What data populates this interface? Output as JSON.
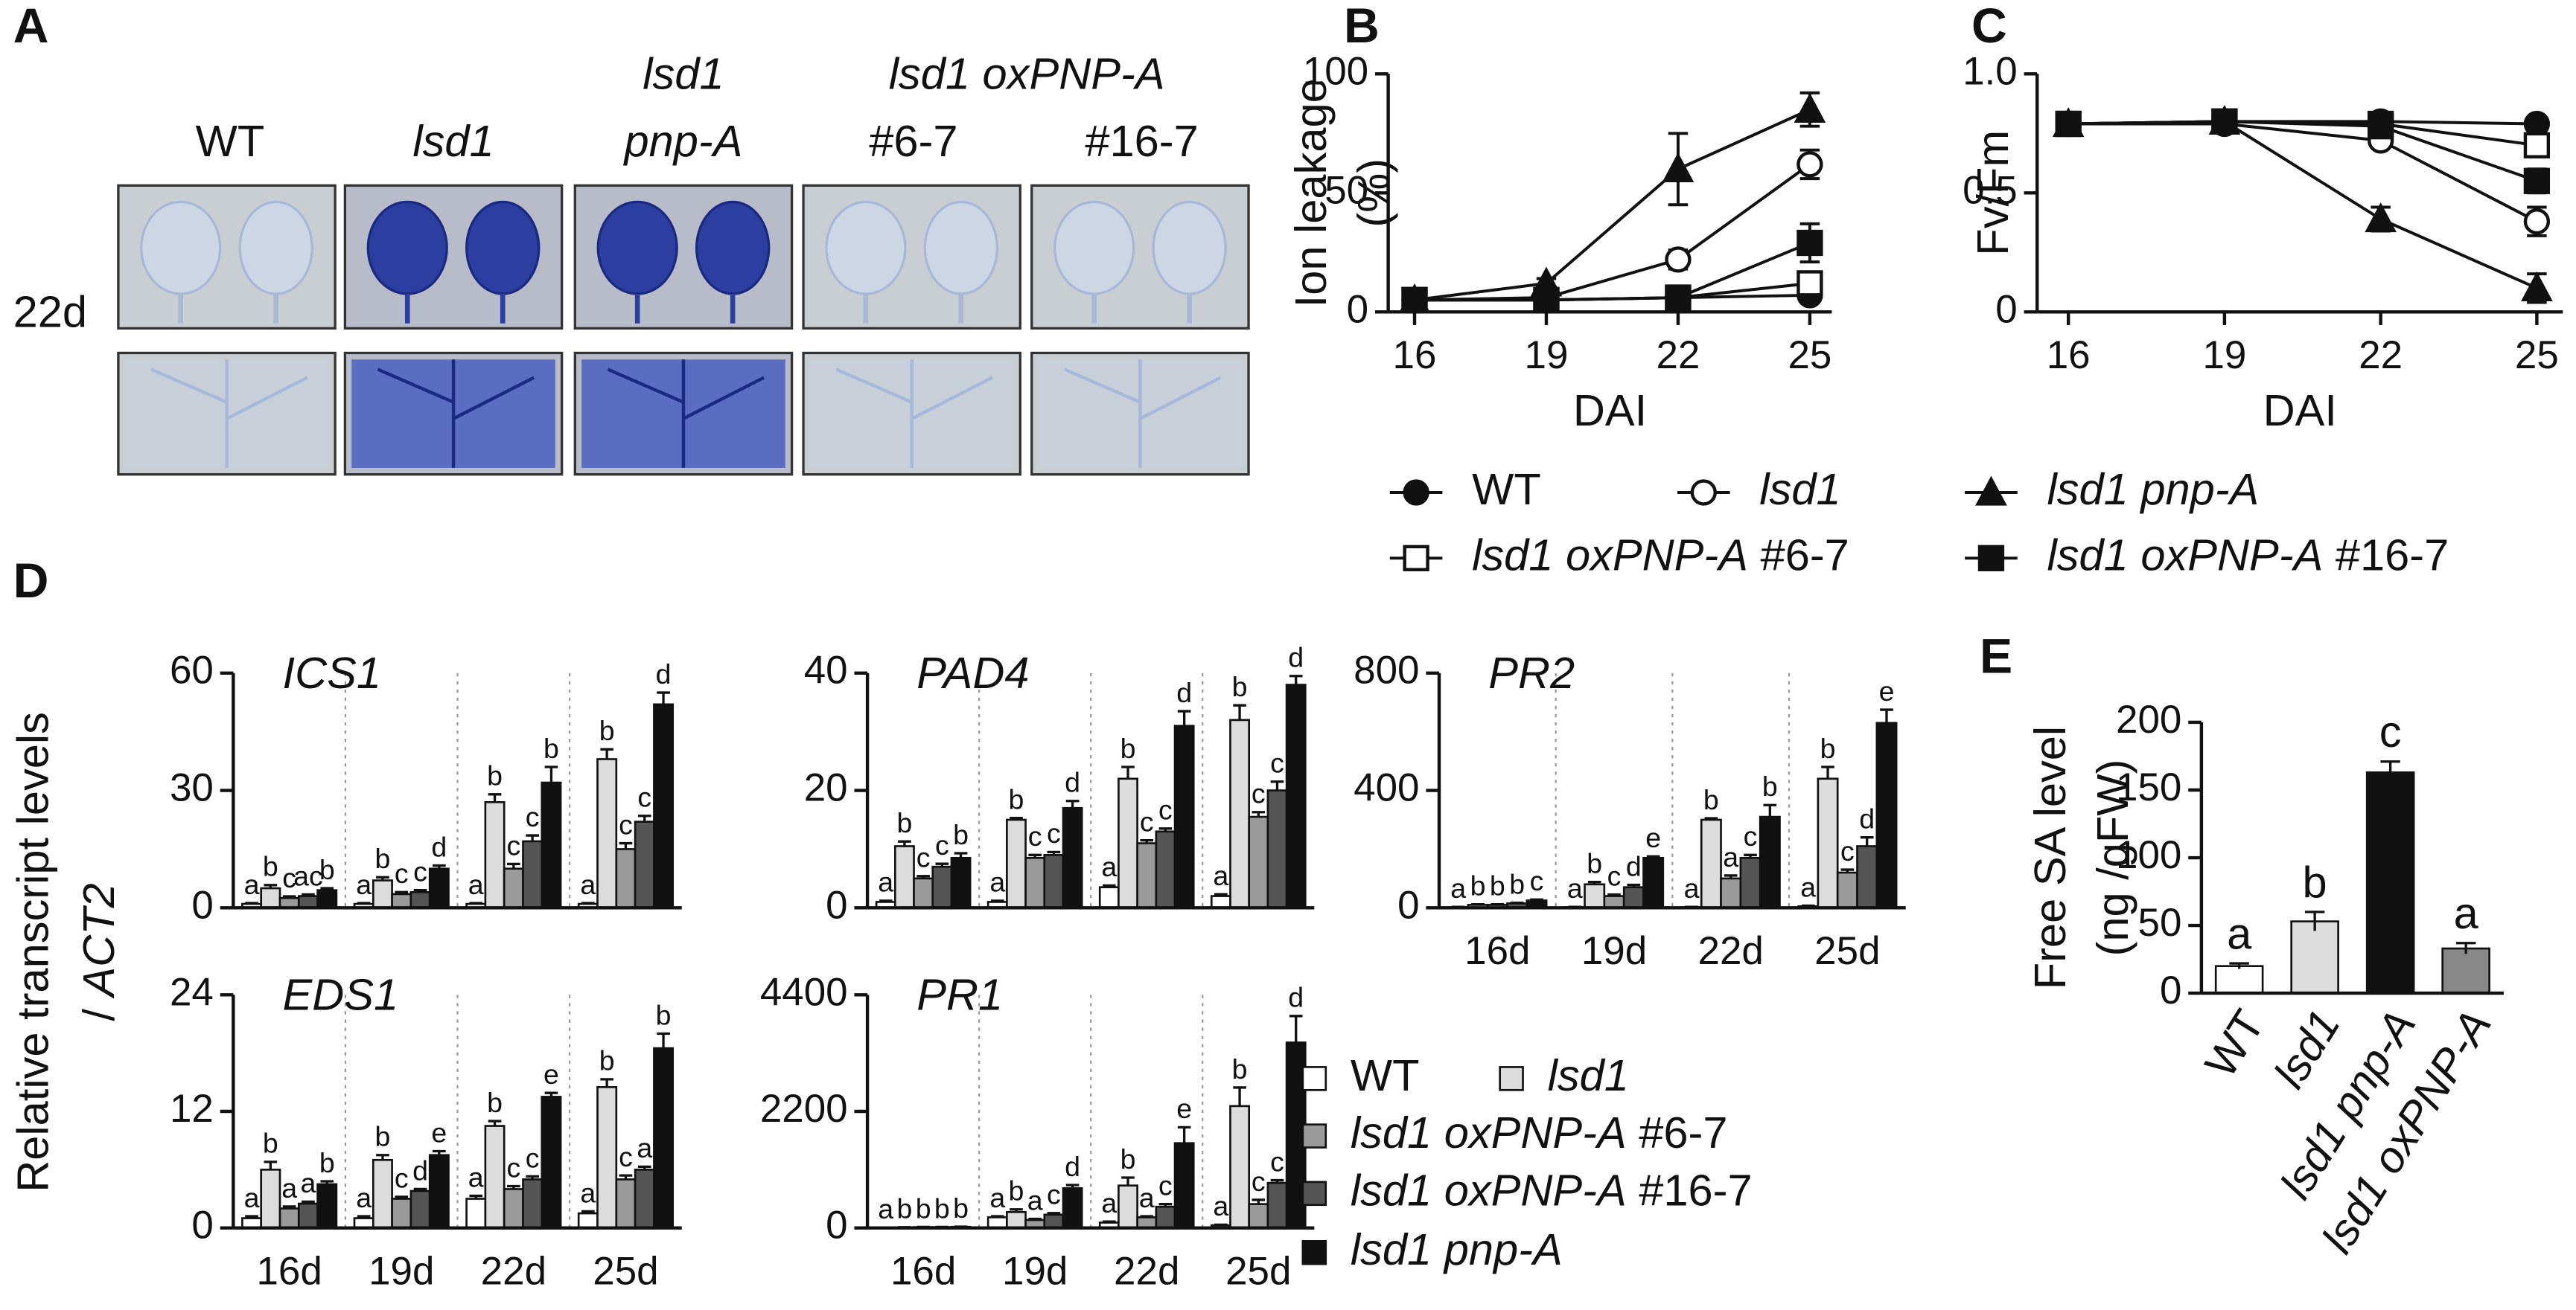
{
  "panel_labels": [
    "A",
    "B",
    "C",
    "D",
    "E"
  ],
  "panel_a": {
    "headers": [
      "WT",
      "lsd1",
      "lsd1",
      "pnp-A",
      "lsd1 oxPNP-A",
      "#6-7",
      "#16-7"
    ],
    "row_label": "22d"
  },
  "legends": [
    {
      "entries": [
        {
          "name": "WT",
          "marker": "circle",
          "filled": true
        },
        {
          "name": "lsd1",
          "marker": "circle",
          "filled": false
        },
        {
          "name": "lsd1 pnp-A",
          "marker": "triangle",
          "filled": true
        },
        {
          "name": "lsd1 oxPNP-A #6-7",
          "marker": "square",
          "filled": false
        },
        {
          "name": "lsd1 oxPNP-A #16-7",
          "marker": "square",
          "filled": true
        }
      ]
    },
    {
      "entries": [
        {
          "name": "WT",
          "color": "#ffffff"
        },
        {
          "name": "lsd1",
          "color": "#dcdcdc"
        },
        {
          "name": "lsd1 oxPNP-A #6-7",
          "color": "#9a9a9a"
        },
        {
          "name": "lsd1 oxPNP-A #16-7",
          "color": "#555555"
        },
        {
          "name": "lsd1 pnp-A",
          "color": "#111111"
        }
      ]
    }
  ],
  "d_ylabel": [
    "Relative transcript levels",
    "/ ACT2"
  ],
  "chart_data": [
    {
      "type": "line",
      "ylabel": [
        "Ion leakage",
        "(%)"
      ],
      "xlabel": "DAI",
      "x": [
        16,
        19,
        22,
        25
      ],
      "xlim": [
        15.4,
        25.5
      ],
      "xticks": [
        16,
        19,
        22,
        25
      ],
      "ylim": [
        0,
        100
      ],
      "yticks": [
        0,
        50,
        100
      ],
      "series": [
        {
          "marker": "circle",
          "filled": true,
          "values": [
            5,
            5,
            6,
            7
          ],
          "errors": [
            0.5,
            0.5,
            1,
            1
          ]
        },
        {
          "marker": "circle",
          "filled": false,
          "values": [
            5,
            6,
            22,
            62
          ],
          "errors": [
            0.5,
            1,
            4,
            6
          ]
        },
        {
          "marker": "triangle",
          "filled": true,
          "values": [
            5,
            12,
            60,
            85
          ],
          "errors": [
            0.5,
            2,
            15,
            7
          ]
        },
        {
          "marker": "square",
          "filled": false,
          "values": [
            5,
            5,
            6,
            12
          ],
          "errors": [
            0.5,
            0.5,
            1,
            3
          ]
        },
        {
          "marker": "square",
          "filled": true,
          "values": [
            5,
            5,
            6,
            29
          ],
          "errors": [
            0.5,
            0.5,
            1,
            8
          ]
        }
      ]
    },
    {
      "type": "line",
      "ylabel": [
        "Fv/Fm"
      ],
      "xlabel": "DAI",
      "x": [
        16,
        19,
        22,
        25
      ],
      "xlim": [
        15.4,
        25.5
      ],
      "xticks": [
        16,
        19,
        22,
        25
      ],
      "ylim": [
        0,
        1
      ],
      "yticks": [
        0,
        0.5,
        {
          "value": 1,
          "label": "1.0"
        }
      ],
      "series": [
        {
          "marker": "circle",
          "filled": true,
          "values": [
            0.79,
            0.8,
            0.8,
            0.79
          ],
          "errors": [
            0.01,
            0.01,
            0.01,
            0.01
          ]
        },
        {
          "marker": "circle",
          "filled": false,
          "values": [
            0.79,
            0.79,
            0.72,
            0.38
          ],
          "errors": [
            0.01,
            0.01,
            0.03,
            0.06
          ]
        },
        {
          "marker": "triangle",
          "filled": true,
          "values": [
            0.79,
            0.8,
            0.39,
            0.1
          ],
          "errors": [
            0.01,
            0.01,
            0.05,
            0.06
          ]
        },
        {
          "marker": "square",
          "filled": false,
          "values": [
            0.79,
            0.8,
            0.79,
            0.7
          ],
          "errors": [
            0.01,
            0.01,
            0.02,
            0.04
          ]
        },
        {
          "marker": "square",
          "filled": true,
          "values": [
            0.79,
            0.8,
            0.78,
            0.55
          ],
          "errors": [
            0.01,
            0.01,
            0.02,
            0.05
          ]
        }
      ]
    },
    {
      "type": "grouped_bar",
      "title": "ICS1",
      "categories": [
        null,
        null,
        null,
        null
      ],
      "ylim": [
        0,
        60
      ],
      "yticks": [
        0,
        30,
        60
      ],
      "series": [
        {
          "color": "#ffffff",
          "values": [
            1,
            1,
            1,
            1
          ],
          "errors": [
            0.2,
            0.2,
            0.2,
            0.2
          ],
          "letters": [
            "a",
            "a",
            "a",
            "a"
          ]
        },
        {
          "color": "#dcdcdc",
          "values": [
            5,
            7,
            27,
            38
          ],
          "errors": [
            0.8,
            0.8,
            2,
            2.5
          ],
          "letters": [
            "b",
            "b",
            "b",
            "b"
          ]
        },
        {
          "color": "#9a9a9a",
          "values": [
            2.5,
            3.5,
            10,
            15
          ],
          "errors": [
            0.4,
            0.5,
            1.2,
            1.5
          ],
          "letters": [
            "c",
            "c",
            "c",
            "c"
          ]
        },
        {
          "color": "#555555",
          "values": [
            3,
            4,
            17,
            22
          ],
          "errors": [
            0.4,
            0.5,
            1.5,
            1.5
          ],
          "letters": [
            "ac",
            "c",
            "c",
            "c"
          ]
        },
        {
          "color": "#111111",
          "values": [
            4.5,
            10,
            32,
            52
          ],
          "errors": [
            0.5,
            0.8,
            4,
            3
          ],
          "letters": [
            "b",
            "d",
            "b",
            "d"
          ]
        }
      ]
    },
    {
      "type": "grouped_bar",
      "title": "PAD4",
      "categories": [
        null,
        null,
        null,
        null
      ],
      "ylim": [
        0,
        40
      ],
      "yticks": [
        0,
        20,
        40
      ],
      "series": [
        {
          "color": "#ffffff",
          "values": [
            1,
            1,
            3.5,
            2
          ],
          "errors": [
            0.2,
            0.2,
            0.3,
            0.3
          ],
          "letters": [
            "a",
            "a",
            "a",
            "a"
          ]
        },
        {
          "color": "#dcdcdc",
          "values": [
            10.5,
            15,
            22,
            32
          ],
          "errors": [
            0.8,
            0.3,
            2,
            2.5
          ],
          "letters": [
            "b",
            "b",
            "b",
            "b"
          ]
        },
        {
          "color": "#9a9a9a",
          "values": [
            5,
            8.5,
            11,
            15.5
          ],
          "errors": [
            0.4,
            0.5,
            0.5,
            0.8
          ],
          "letters": [
            "c",
            "c",
            "c",
            "c"
          ]
        },
        {
          "color": "#555555",
          "values": [
            7,
            9,
            13,
            20
          ],
          "errors": [
            0.5,
            0.5,
            0.5,
            1.5
          ],
          "letters": [
            "c",
            "c",
            "c",
            "c"
          ]
        },
        {
          "color": "#111111",
          "values": [
            8.5,
            17,
            31,
            38
          ],
          "errors": [
            0.8,
            1.2,
            2.5,
            1.5
          ],
          "letters": [
            "b",
            "d",
            "d",
            "d"
          ]
        }
      ]
    },
    {
      "type": "grouped_bar",
      "title": "PR2",
      "categories": [
        "16d",
        "19d",
        "22d",
        "25d"
      ],
      "ylim": [
        0,
        800
      ],
      "yticks": [
        0,
        400,
        800
      ],
      "series": [
        {
          "color": "#ffffff",
          "values": [
            2,
            2,
            2,
            5
          ],
          "errors": [
            1,
            1,
            1,
            2
          ],
          "letters": [
            "a",
            "a",
            "a",
            "a"
          ]
        },
        {
          "color": "#dcdcdc",
          "values": [
            10,
            80,
            300,
            440
          ],
          "errors": [
            2,
            8,
            5,
            40
          ],
          "letters": [
            "b",
            "b",
            "b",
            "b"
          ]
        },
        {
          "color": "#9a9a9a",
          "values": [
            10,
            40,
            100,
            120
          ],
          "errors": [
            2,
            5,
            10,
            10
          ],
          "letters": [
            "b",
            "c",
            "a",
            "c"
          ]
        },
        {
          "color": "#555555",
          "values": [
            15,
            70,
            170,
            210
          ],
          "errors": [
            2,
            8,
            10,
            30
          ],
          "letters": [
            "b",
            "d",
            "c",
            "d"
          ]
        },
        {
          "color": "#111111",
          "values": [
            25,
            170,
            310,
            630
          ],
          "errors": [
            3,
            5,
            40,
            45
          ],
          "letters": [
            "c",
            "e",
            "b",
            "e"
          ]
        }
      ]
    },
    {
      "type": "grouped_bar",
      "title": "EDS1",
      "categories": [
        "16d",
        "19d",
        "22d",
        "25d"
      ],
      "ylim": [
        0,
        24
      ],
      "yticks": [
        0,
        12,
        24
      ],
      "series": [
        {
          "color": "#ffffff",
          "values": [
            1,
            1,
            3,
            1.5
          ],
          "errors": [
            0.2,
            0.2,
            0.3,
            0.2
          ],
          "letters": [
            "a",
            "a",
            "a",
            "a"
          ]
        },
        {
          "color": "#dcdcdc",
          "values": [
            6,
            7,
            10.5,
            14.5
          ],
          "errors": [
            0.8,
            0.5,
            0.5,
            0.8
          ],
          "letters": [
            "b",
            "b",
            "b",
            "b"
          ]
        },
        {
          "color": "#9a9a9a",
          "values": [
            2,
            3,
            4,
            5
          ],
          "errors": [
            0.2,
            0.2,
            0.3,
            0.4
          ],
          "letters": [
            "a",
            "c",
            "c",
            "c"
          ]
        },
        {
          "color": "#555555",
          "values": [
            2.5,
            3.8,
            5,
            6
          ],
          "errors": [
            0.2,
            0.2,
            0.3,
            0.3
          ],
          "letters": [
            "a",
            "d",
            "c",
            "a"
          ]
        },
        {
          "color": "#111111",
          "values": [
            4.5,
            7.5,
            13.5,
            18.5
          ],
          "errors": [
            0.3,
            0.4,
            0.4,
            1.5
          ],
          "letters": [
            "b",
            "e",
            "e",
            "b"
          ]
        }
      ]
    },
    {
      "type": "grouped_bar",
      "title": "PR1",
      "categories": [
        "16d",
        "19d",
        "22d",
        "25d"
      ],
      "ylim": [
        0,
        4400
      ],
      "yticks": [
        0,
        2200,
        4400
      ],
      "series": [
        {
          "color": "#ffffff",
          "values": [
            5,
            200,
            100,
            50
          ],
          "errors": [
            2,
            20,
            20,
            10
          ],
          "letters": [
            "a",
            "a",
            "a",
            "a"
          ]
        },
        {
          "color": "#dcdcdc",
          "values": [
            10,
            300,
            800,
            2300
          ],
          "errors": [
            2,
            50,
            150,
            350
          ],
          "letters": [
            "b",
            "b",
            "b",
            "b"
          ]
        },
        {
          "color": "#9a9a9a",
          "values": [
            15,
            150,
            200,
            450
          ],
          "errors": [
            2,
            20,
            20,
            80
          ],
          "letters": [
            "b",
            "a",
            "a",
            "c"
          ]
        },
        {
          "color": "#555555",
          "values": [
            15,
            250,
            400,
            850
          ],
          "errors": [
            2,
            30,
            50,
            50
          ],
          "letters": [
            "b",
            "c",
            "c",
            "c"
          ]
        },
        {
          "color": "#111111",
          "values": [
            20,
            750,
            1600,
            3500
          ],
          "errors": [
            3,
            60,
            300,
            500
          ],
          "letters": [
            "b",
            "d",
            "e",
            "d"
          ]
        }
      ]
    },
    {
      "type": "bar",
      "ylabel": [
        "Free SA level",
        "(ng /gFW)"
      ],
      "categories": [
        "WT",
        "lsd1",
        "lsd1 pnp-A",
        "lsd1 oxPNP-A"
      ],
      "values": [
        20,
        53,
        163,
        33
      ],
      "errors": [
        2,
        7,
        8,
        4
      ],
      "letters": [
        "a",
        "b",
        "c",
        "a"
      ],
      "colors": [
        "#ffffff",
        "#dcdcdc",
        "#111111",
        "#888888"
      ],
      "ylim": [
        0,
        200
      ],
      "yticks": [
        0,
        50,
        100,
        150,
        200
      ]
    }
  ]
}
